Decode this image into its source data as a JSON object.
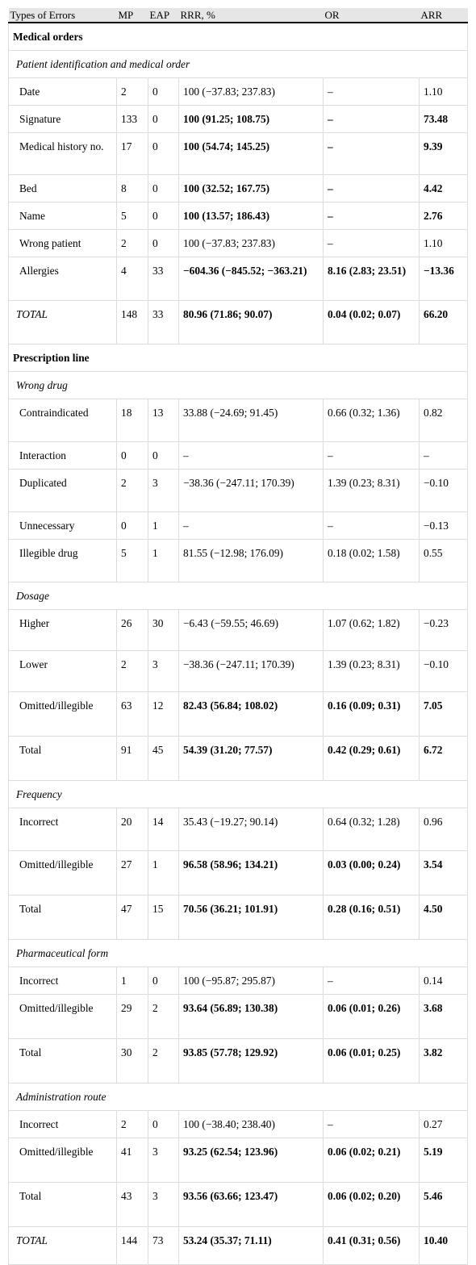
{
  "columns": [
    "Types of Errors",
    "MP",
    "EAP",
    "RRR, %",
    "OR",
    "ARR"
  ],
  "rows": [
    {
      "kind": "section",
      "label": "Medical orders"
    },
    {
      "kind": "subsection",
      "label": "Patient identification and medical order"
    },
    {
      "kind": "data",
      "cells": [
        "Date",
        "2",
        "0",
        "100 (−37.83; 237.83)",
        "–",
        "1.10"
      ],
      "bold": false,
      "h": 32
    },
    {
      "kind": "data",
      "cells": [
        "Signature",
        "133",
        "0",
        "100 (91.25; 108.75)",
        "–",
        "73.48"
      ],
      "bold": true,
      "h": 32
    },
    {
      "kind": "data",
      "cells": [
        "Medical history no.",
        "17",
        "0",
        "100 (54.74; 145.25)",
        "–",
        "9.39"
      ],
      "bold": true,
      "h": 52
    },
    {
      "kind": "data",
      "cells": [
        "Bed",
        "8",
        "0",
        "100 (32.52; 167.75)",
        "–",
        "4.42"
      ],
      "bold": true,
      "h": 32
    },
    {
      "kind": "data",
      "cells": [
        "Name",
        "5",
        "0",
        "100 (13.57; 186.43)",
        "–",
        "2.76"
      ],
      "bold": true,
      "h": 32
    },
    {
      "kind": "data",
      "cells": [
        "Wrong patient",
        "2",
        "0",
        "100 (−37.83; 237.83)",
        "–",
        "1.10"
      ],
      "bold": false,
      "h": 32
    },
    {
      "kind": "data",
      "cells": [
        "Allergies",
        "4",
        "33",
        "−604.36 (−845.52; −363.21)",
        "8.16 (2.83; 23.51)",
        "−13.36"
      ],
      "bold": true,
      "h": 54
    },
    {
      "kind": "total",
      "cells": [
        "TOTAL",
        "148",
        "33",
        "80.96 (71.86; 90.07)",
        "0.04 (0.02; 0.07)",
        "66.20"
      ],
      "bold": true,
      "h": 54
    },
    {
      "kind": "section",
      "label": "Prescription line"
    },
    {
      "kind": "subsection",
      "label": "Wrong drug"
    },
    {
      "kind": "data",
      "cells": [
        "Contraindicated",
        "18",
        "13",
        "33.88 (−24.69; 91.45)",
        "0.66 (0.32; 1.36)",
        "0.82"
      ],
      "bold": false,
      "h": 53
    },
    {
      "kind": "data",
      "cells": [
        "Interaction",
        "0",
        "0",
        "–",
        "–",
        "–"
      ],
      "bold": false,
      "h": 31
    },
    {
      "kind": "data",
      "cells": [
        "Duplicated",
        "2",
        "3",
        "−38.36 (−247.11; 170.39)",
        "1.39 (0.23; 8.31)",
        "−0.10"
      ],
      "bold": false,
      "h": 53
    },
    {
      "kind": "data",
      "cells": [
        "Unnecessary",
        "0",
        "1",
        "–",
        "–",
        "−0.13"
      ],
      "bold": false,
      "h": 31
    },
    {
      "kind": "data",
      "cells": [
        "Illegible drug",
        "5",
        "1",
        "81.55 (−12.98; 176.09)",
        "0.18 (0.02; 1.58)",
        "0.55"
      ],
      "bold": false,
      "h": 53
    },
    {
      "kind": "subsection",
      "label": "Dosage"
    },
    {
      "kind": "data",
      "cells": [
        "Higher",
        "26",
        "30",
        "−6.43 (−59.55; 46.69)",
        "1.07 (0.62; 1.82)",
        "−0.23"
      ],
      "bold": false,
      "h": 51
    },
    {
      "kind": "data",
      "cells": [
        "Lower",
        "2",
        "3",
        "−38.36 (−247.11; 170.39)",
        "1.39 (0.23; 8.31)",
        "−0.10"
      ],
      "bold": false,
      "h": 51
    },
    {
      "kind": "data",
      "cells": [
        "Omitted/illegible",
        "63",
        "12",
        "82.43 (56.84; 108.02)",
        "0.16 (0.09; 0.31)",
        "7.05"
      ],
      "bold": true,
      "h": 55
    },
    {
      "kind": "data",
      "cells": [
        "Total",
        "91",
        "45",
        "54.39 (31.20; 77.57)",
        "0.42 (0.29; 0.61)",
        "6.72"
      ],
      "bold": true,
      "h": 55
    },
    {
      "kind": "subsection",
      "label": "Frequency"
    },
    {
      "kind": "data",
      "cells": [
        "Incorrect",
        "20",
        "14",
        "35.43 (−19.27; 90.14)",
        "0.64 (0.32; 1.28)",
        "0.96"
      ],
      "bold": false,
      "h": 53
    },
    {
      "kind": "data",
      "cells": [
        "Omitted/illegible",
        "27",
        "1",
        "96.58 (58.96; 134.21)",
        "0.03 (0.00; 0.24)",
        "3.54"
      ],
      "bold": true,
      "h": 55
    },
    {
      "kind": "data",
      "cells": [
        "Total",
        "47",
        "15",
        "70.56 (36.21; 101.91)",
        "0.28 (0.16; 0.51)",
        "4.50"
      ],
      "bold": true,
      "h": 55
    },
    {
      "kind": "subsection",
      "label": "Pharmaceutical form"
    },
    {
      "kind": "data",
      "cells": [
        "Incorrect",
        "1",
        "0",
        "100 (−95.87; 295.87)",
        "–",
        "0.14"
      ],
      "bold": false,
      "h": 32
    },
    {
      "kind": "data",
      "cells": [
        "Omitted/illegible",
        "29",
        "2",
        "93.64 (56.89; 130.38)",
        "0.06 (0.01; 0.26)",
        "3.68"
      ],
      "bold": true,
      "h": 55
    },
    {
      "kind": "data",
      "cells": [
        "Total",
        "30",
        "2",
        "93.85 (57.78; 129.92)",
        "0.06 (0.01; 0.25)",
        "3.82"
      ],
      "bold": true,
      "h": 55
    },
    {
      "kind": "subsection",
      "label": "Administration route"
    },
    {
      "kind": "data",
      "cells": [
        "Incorrect",
        "2",
        "0",
        "100 (−38.40; 238.40)",
        "–",
        "0.27"
      ],
      "bold": false,
      "h": 32
    },
    {
      "kind": "data",
      "cells": [
        "Omitted/illegible",
        "41",
        "3",
        "93.25 (62.54; 123.96)",
        "0.06 (0.02; 0.21)",
        "5.19"
      ],
      "bold": true,
      "h": 55
    },
    {
      "kind": "data",
      "cells": [
        "Total",
        "43",
        "3",
        "93.56 (63.66; 123.47)",
        "0.06 (0.02; 0.20)",
        "5.46"
      ],
      "bold": true,
      "h": 55
    },
    {
      "kind": "total",
      "cells": [
        "TOTAL",
        "144",
        "73",
        "53.24 (35.37; 71.11)",
        "0.41 (0.31; 0.56)",
        "10.40"
      ],
      "bold": true,
      "h": 47
    }
  ]
}
